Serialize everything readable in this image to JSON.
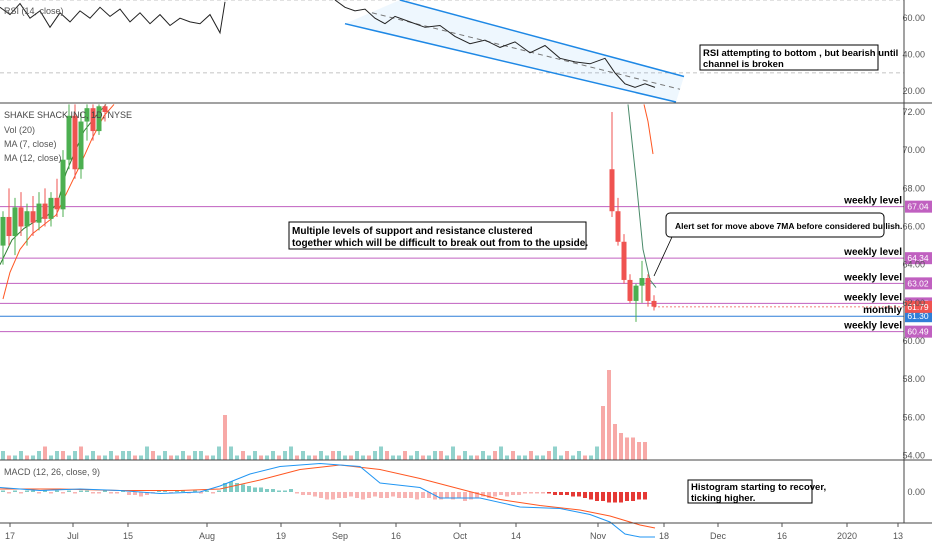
{
  "chart_data": {
    "type": "candlestick",
    "colors": {
      "up": "#26a69a",
      "down": "#ef5350",
      "ma_fast": "#2196f3",
      "ma_slow": "#ff5722",
      "level": "#c060c0",
      "monthly": "#2f7ed8",
      "annotation_box": "#000000"
    },
    "panels": {
      "rsi": {
        "legend": "RSI (14, close)",
        "ylim": [
          14,
          70
        ],
        "ticks": [
          "20.00",
          "40.00",
          "60.00"
        ],
        "tick_values": [
          20,
          40,
          60
        ],
        "bands": [
          30,
          70
        ],
        "series_a": [
          [
            0,
            66
          ],
          [
            10,
            62
          ],
          [
            20,
            68
          ],
          [
            30,
            60
          ],
          [
            40,
            64
          ],
          [
            50,
            55
          ],
          [
            60,
            63
          ],
          [
            70,
            58
          ],
          [
            80,
            64
          ],
          [
            90,
            60
          ],
          [
            100,
            66
          ],
          [
            110,
            61
          ],
          [
            120,
            65
          ],
          [
            130,
            58
          ],
          [
            140,
            63
          ],
          [
            150,
            57
          ],
          [
            160,
            62
          ],
          [
            170,
            56
          ],
          [
            180,
            60
          ],
          [
            190,
            58
          ],
          [
            200,
            57
          ],
          [
            210,
            62
          ],
          [
            220,
            52
          ],
          [
            225,
            69
          ]
        ],
        "series_b": [
          [
            335,
            70
          ],
          [
            345,
            66
          ],
          [
            355,
            64
          ],
          [
            365,
            65
          ],
          [
            375,
            60
          ],
          [
            385,
            57
          ],
          [
            395,
            61
          ],
          [
            410,
            58
          ],
          [
            425,
            55
          ],
          [
            440,
            56
          ],
          [
            455,
            50
          ],
          [
            470,
            46
          ],
          [
            485,
            48
          ],
          [
            500,
            44
          ],
          [
            515,
            47
          ],
          [
            530,
            41
          ],
          [
            545,
            45
          ],
          [
            560,
            38
          ],
          [
            575,
            36
          ],
          [
            590,
            35
          ],
          [
            605,
            38
          ],
          [
            615,
            30
          ],
          [
            625,
            24
          ],
          [
            635,
            22
          ],
          [
            645,
            24
          ],
          [
            655,
            22
          ]
        ],
        "channel": {
          "upper": [
            [
              400,
              70
            ],
            [
              684,
              28
            ]
          ],
          "lower": [
            [
              345,
              57
            ],
            [
              676,
              14
            ]
          ],
          "mid": [
            [
              372,
              63
            ],
            [
              680,
              21
            ]
          ]
        },
        "annotation": "RSI attempting to bottom , but bearish until channel is broken"
      },
      "price": {
        "legend": [
          "SHAKE SHACK INC, 1D, NYSE",
          "Vol (20)",
          "MA (7, close)",
          "MA (12, close)"
        ],
        "ylim": [
          53.6,
          72.4
        ],
        "ticks": [
          "54.00",
          "56.00",
          "58.00",
          "60.00",
          "62.00",
          "64.00",
          "66.00",
          "68.00",
          "70.00",
          "72.00"
        ],
        "tick_values": [
          54,
          56,
          58,
          60,
          62,
          64,
          66,
          68,
          70,
          72
        ],
        "levels": [
          {
            "value": 67.04,
            "tag": "67.04",
            "name": "weekly level",
            "kind": "weekly"
          },
          {
            "value": 64.34,
            "tag": "64.34",
            "name": "weekly level",
            "kind": "weekly"
          },
          {
            "value": 63.02,
            "tag": "63.02",
            "name": "weekly level",
            "kind": "weekly"
          },
          {
            "value": 61.97,
            "tag": "61.97",
            "name": "weekly level",
            "kind": "weekly"
          },
          {
            "value": 61.3,
            "tag": "61.30",
            "name": "monthly",
            "kind": "monthly"
          },
          {
            "value": 60.49,
            "tag": "60.49",
            "name": "weekly level",
            "kind": "weekly"
          }
        ],
        "last_price": {
          "value": 61.79,
          "tag": "61.79"
        },
        "candles": [
          {
            "x": 3,
            "o": 65.0,
            "h": 66.8,
            "l": 64.0,
            "c": 66.5
          },
          {
            "x": 9,
            "o": 66.5,
            "h": 68.0,
            "l": 65.0,
            "c": 65.5
          },
          {
            "x": 15,
            "o": 65.5,
            "h": 67.5,
            "l": 64.5,
            "c": 67.0
          },
          {
            "x": 21,
            "o": 67.0,
            "h": 67.8,
            "l": 65.5,
            "c": 66.0
          },
          {
            "x": 27,
            "o": 66.0,
            "h": 67.2,
            "l": 65.0,
            "c": 66.8
          },
          {
            "x": 33,
            "o": 66.8,
            "h": 67.6,
            "l": 65.5,
            "c": 66.2
          },
          {
            "x": 39,
            "o": 66.2,
            "h": 67.8,
            "l": 65.8,
            "c": 67.2
          },
          {
            "x": 45,
            "o": 67.2,
            "h": 68.0,
            "l": 66.0,
            "c": 66.4
          },
          {
            "x": 51,
            "o": 66.4,
            "h": 67.8,
            "l": 66.0,
            "c": 67.5
          },
          {
            "x": 57,
            "o": 67.5,
            "h": 68.5,
            "l": 66.5,
            "c": 66.9
          },
          {
            "x": 63,
            "o": 66.9,
            "h": 70.0,
            "l": 66.5,
            "c": 69.5
          },
          {
            "x": 69,
            "o": 69.5,
            "h": 72.4,
            "l": 69.0,
            "c": 71.8
          },
          {
            "x": 75,
            "o": 71.8,
            "h": 72.4,
            "l": 68.5,
            "c": 69.0
          },
          {
            "x": 81,
            "o": 69.0,
            "h": 72.0,
            "l": 68.5,
            "c": 71.5
          },
          {
            "x": 87,
            "o": 71.5,
            "h": 72.4,
            "l": 70.5,
            "c": 72.2
          },
          {
            "x": 93,
            "o": 72.2,
            "h": 72.4,
            "l": 70.5,
            "c": 71.0
          },
          {
            "x": 99,
            "o": 71.0,
            "h": 72.4,
            "l": 70.8,
            "c": 72.3
          },
          {
            "x": 105,
            "o": 72.3,
            "h": 72.4,
            "l": 71.5,
            "c": 72.0
          },
          {
            "x": 612,
            "o": 69.0,
            "h": 72.0,
            "l": 66.5,
            "c": 66.8
          },
          {
            "x": 618,
            "o": 66.8,
            "h": 67.5,
            "l": 65.0,
            "c": 65.2
          },
          {
            "x": 624,
            "o": 65.2,
            "h": 65.6,
            "l": 63.0,
            "c": 63.2
          },
          {
            "x": 630,
            "o": 63.2,
            "h": 63.5,
            "l": 62.0,
            "c": 62.1
          },
          {
            "x": 636,
            "o": 62.1,
            "h": 63.0,
            "l": 61.0,
            "c": 62.9
          },
          {
            "x": 642,
            "o": 62.9,
            "h": 64.2,
            "l": 62.0,
            "c": 63.3
          },
          {
            "x": 648,
            "o": 63.3,
            "h": 63.5,
            "l": 61.8,
            "c": 62.1
          },
          {
            "x": 654,
            "o": 62.1,
            "h": 62.4,
            "l": 61.6,
            "c": 61.8
          }
        ],
        "ma_fast": [
          [
            0,
            64
          ],
          [
            12,
            65.3
          ],
          [
            24,
            65.9
          ],
          [
            36,
            66.3
          ],
          [
            48,
            66.6
          ],
          [
            58,
            67.3
          ],
          [
            66,
            68.8
          ],
          [
            74,
            69.8
          ],
          [
            84,
            71
          ],
          [
            96,
            71.8
          ],
          [
            106,
            72.4
          ]
        ],
        "ma_slow": [
          [
            3,
            62.2
          ],
          [
            10,
            63.6
          ],
          [
            20,
            64.8
          ],
          [
            32,
            65.6
          ],
          [
            44,
            66.1
          ],
          [
            56,
            66.6
          ],
          [
            68,
            67.9
          ],
          [
            80,
            69.2
          ],
          [
            92,
            70.6
          ],
          [
            104,
            71.8
          ],
          [
            114,
            72.4
          ]
        ],
        "ma_fast_b": [
          [
            628,
            72.4
          ],
          [
            636,
            68.5
          ],
          [
            643,
            64.8
          ],
          [
            650,
            63.2
          ],
          [
            656,
            62.8
          ]
        ],
        "ma_slow_b": [
          [
            644,
            72.4
          ],
          [
            648,
            71.5
          ],
          [
            653,
            69.8
          ]
        ],
        "volume": {
          "bars": [
            2,
            1,
            1,
            2,
            1,
            1,
            2,
            3,
            1,
            2,
            2,
            1,
            2,
            3,
            1,
            2,
            1,
            1,
            2,
            1,
            2,
            2,
            1,
            1,
            3,
            2,
            1,
            2,
            1,
            1,
            2,
            1,
            2,
            2,
            1,
            1,
            3,
            10,
            3,
            1,
            2,
            1,
            2,
            1,
            1,
            2,
            1,
            2,
            3,
            1,
            2,
            1,
            1,
            2,
            1,
            2,
            2,
            1,
            1,
            2,
            1,
            1,
            2,
            3,
            2,
            1,
            1,
            2,
            1,
            2,
            1,
            1,
            2,
            2,
            1,
            3,
            1,
            2,
            1,
            1,
            2,
            1,
            2,
            3,
            1,
            2,
            1,
            1,
            2,
            1,
            1,
            2,
            3,
            1,
            2,
            1,
            2,
            1,
            1,
            3,
            12,
            20,
            8,
            6,
            5,
            5,
            4,
            4
          ],
          "x_start": 3,
          "x_step": 6,
          "up_pattern": "mixed",
          "scale_max": 20
        },
        "annotations": [
          "Multiple levels of support and resistance clustered together which will be difficult to break out from to the upside.",
          "Alert set for move above 7MA before considered bullish."
        ]
      },
      "macd": {
        "legend": "MACD (12, 26, close, 9)",
        "ylim": [
          -1.6,
          1.2
        ],
        "ticks": [
          "0.00"
        ],
        "tick_values": [
          0
        ],
        "macd_line": [
          [
            0,
            0.15
          ],
          [
            40,
            0.05
          ],
          [
            80,
            0.1
          ],
          [
            120,
            0.05
          ],
          [
            160,
            -0.05
          ],
          [
            200,
            0.0
          ],
          [
            220,
            0.2
          ],
          [
            250,
            0.6
          ],
          [
            280,
            0.85
          ],
          [
            320,
            0.95
          ],
          [
            360,
            0.85
          ],
          [
            380,
            0.3
          ],
          [
            420,
            0.15
          ],
          [
            440,
            -0.2
          ],
          [
            480,
            -0.2
          ],
          [
            520,
            -0.5
          ],
          [
            560,
            -0.55
          ],
          [
            590,
            -0.75
          ],
          [
            610,
            -1.0
          ],
          [
            625,
            -1.4
          ],
          [
            640,
            -1.5
          ],
          [
            655,
            -1.5
          ]
        ],
        "signal_line": [
          [
            0,
            0.1
          ],
          [
            60,
            0.1
          ],
          [
            120,
            0.05
          ],
          [
            180,
            0.05
          ],
          [
            220,
            0.1
          ],
          [
            260,
            0.4
          ],
          [
            300,
            0.75
          ],
          [
            340,
            0.9
          ],
          [
            380,
            0.75
          ],
          [
            420,
            0.45
          ],
          [
            460,
            0.1
          ],
          [
            500,
            -0.25
          ],
          [
            540,
            -0.45
          ],
          [
            580,
            -0.6
          ],
          [
            610,
            -0.8
          ],
          [
            640,
            -1.1
          ],
          [
            655,
            -1.2
          ]
        ],
        "histogram": [
          0.05,
          -0.05,
          0.05,
          -0.05,
          0.05,
          0.05,
          -0.05,
          0.05,
          -0.05,
          0.05,
          -0.05,
          0.05,
          -0.05,
          0.05,
          0.05,
          -0.05,
          -0.05,
          0.05,
          -0.05,
          -0.05,
          0.05,
          -0.1,
          -0.1,
          -0.15,
          -0.1,
          -0.05,
          0.05,
          0.05,
          -0.05,
          0.05,
          0.05,
          -0.05,
          0.05,
          -0.05,
          0.05,
          -0.05,
          0.05,
          0.3,
          0.35,
          0.3,
          0.25,
          0.2,
          0.15,
          0.15,
          0.1,
          0.1,
          0.05,
          0.05,
          0.1,
          -0.05,
          -0.1,
          -0.1,
          -0.15,
          -0.2,
          -0.25,
          -0.25,
          -0.2,
          -0.2,
          -0.15,
          -0.2,
          -0.25,
          -0.2,
          -0.15,
          -0.2,
          -0.2,
          -0.15,
          -0.2,
          -0.2,
          -0.2,
          -0.25,
          -0.2,
          -0.2,
          -0.25,
          -0.25,
          -0.2,
          -0.25,
          -0.2,
          -0.3,
          -0.25,
          -0.2,
          -0.15,
          -0.2,
          -0.15,
          -0.1,
          -0.15,
          -0.1,
          -0.1,
          -0.05,
          -0.05,
          -0.05,
          -0.05,
          -0.05,
          -0.1,
          -0.1,
          -0.1,
          -0.15,
          -0.15,
          -0.2,
          -0.25,
          -0.3,
          -0.3,
          -0.35,
          -0.35,
          -0.35,
          -0.3,
          -0.3,
          -0.25,
          -0.25
        ],
        "x_start": 3,
        "x_step": 6,
        "annotation": "Histogram starting to recover, ticking higher."
      }
    },
    "x_axis": {
      "tick_labels": [
        "17",
        "Jul",
        "15",
        "Aug",
        "19",
        "Sep",
        "16",
        "Oct",
        "14",
        "Nov",
        "18",
        "Dec",
        "16",
        "2020",
        "13"
      ],
      "tick_x": [
        10,
        73,
        128,
        207,
        281,
        340,
        396,
        460,
        516,
        598,
        664,
        718,
        782,
        847,
        898
      ]
    }
  }
}
